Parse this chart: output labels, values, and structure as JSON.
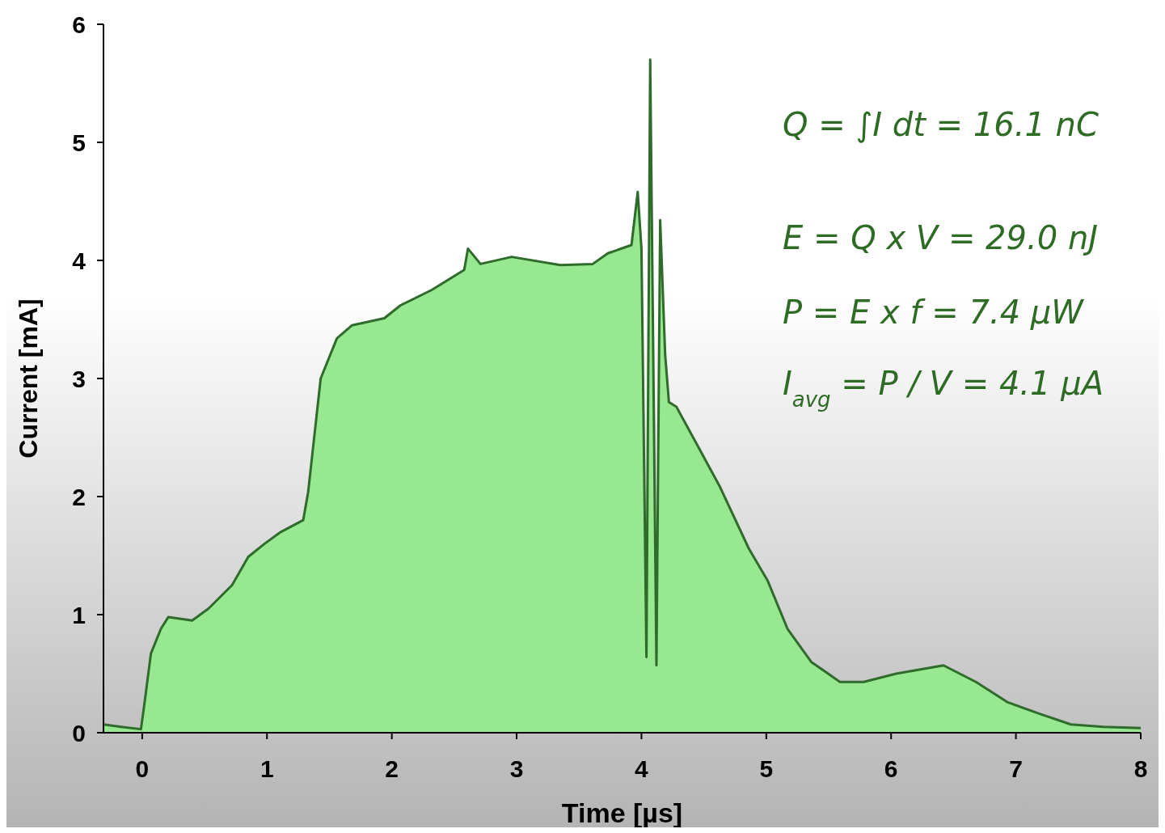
{
  "chart_data": {
    "type": "area",
    "xlabel": "Time [µs]",
    "ylabel": "Current  [mA]",
    "xlim": [
      -0.31,
      8
    ],
    "ylim": [
      0,
      6
    ],
    "xticks": [
      0,
      1,
      2,
      3,
      4,
      5,
      6,
      7,
      8
    ],
    "yticks": [
      0,
      1,
      2,
      3,
      4,
      5,
      6
    ],
    "grid": false,
    "annotations": [
      "Q = ∫I dt = 16.1 nC",
      "E = Q x V = 29.0 nJ",
      "P = E x f = 7.4 µW",
      "I$_{avg}$ = P / V = 4.1 µA"
    ],
    "series": [
      {
        "color": "#2f6b2a",
        "x": [
          -0.31,
          -0.17,
          -0.01,
          0.02,
          0.07,
          0.15,
          0.21,
          0.4,
          0.53,
          0.72,
          0.85,
          0.98,
          1.11,
          1.29,
          1.33,
          1.43,
          1.56,
          1.68,
          1.94,
          2.07,
          2.32,
          2.58,
          2.61,
          2.71,
          2.96,
          3.35,
          3.61,
          3.73,
          3.92,
          3.97,
          4.0,
          4.04,
          4.07,
          4.12,
          4.15,
          4.19,
          4.22,
          4.28,
          4.44,
          4.63,
          4.86,
          5.01,
          5.17,
          5.36,
          5.59,
          5.78,
          6.04,
          6.42,
          6.68,
          6.93,
          7.19,
          7.44,
          7.7,
          8.0
        ],
        "values": [
          0.07,
          0.05,
          0.03,
          0.26,
          0.67,
          0.88,
          0.98,
          0.95,
          1.05,
          1.25,
          1.49,
          1.6,
          1.7,
          1.8,
          2.04,
          3.0,
          3.34,
          3.45,
          3.51,
          3.62,
          3.75,
          3.92,
          4.1,
          3.97,
          4.03,
          3.96,
          3.97,
          4.06,
          4.13,
          4.58,
          4.1,
          0.64,
          5.7,
          0.57,
          4.34,
          3.2,
          2.8,
          2.76,
          2.45,
          2.08,
          1.56,
          1.29,
          0.88,
          0.6,
          0.43,
          0.43,
          0.5,
          0.57,
          0.43,
          0.26,
          0.16,
          0.07,
          0.05,
          0.04
        ]
      }
    ]
  }
}
